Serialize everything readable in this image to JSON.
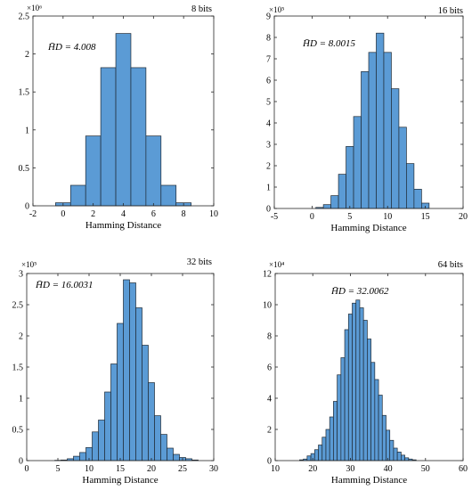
{
  "chart_data": [
    {
      "type": "bar",
      "title": "8 bits",
      "xlabel": "Hamming Distance",
      "ylabel": "",
      "mean_label": "H̄D = 4.008",
      "exponent_label": "×10⁶",
      "xlim": [
        -2,
        10
      ],
      "ylim": [
        0,
        2.5
      ],
      "bin_width": 1,
      "xticks": [
        -2,
        0,
        2,
        4,
        6,
        8,
        10
      ],
      "yticks": [
        0,
        0.5,
        1,
        1.5,
        2,
        2.5
      ],
      "ytick_labels": [
        "0",
        "0.5",
        "1",
        "1.5",
        "2",
        "2.5"
      ],
      "x": [
        0,
        1,
        2,
        3,
        4,
        5,
        6,
        7,
        8
      ],
      "values": [
        0.04,
        0.27,
        0.92,
        1.82,
        2.27,
        1.82,
        0.92,
        0.27,
        0.04
      ]
    },
    {
      "type": "bar",
      "title": "16 bits",
      "xlabel": "Hamming Distance",
      "ylabel": "",
      "mean_label": "H̄D = 8.0015",
      "exponent_label": "×10⁵",
      "xlim": [
        -5,
        20
      ],
      "ylim": [
        0,
        9
      ],
      "bin_width": 1,
      "xticks": [
        -5,
        0,
        5,
        10,
        15,
        20
      ],
      "yticks": [
        0,
        1,
        2,
        3,
        4,
        5,
        6,
        7,
        8,
        9
      ],
      "ytick_labels": [
        "0",
        "1",
        "2",
        "3",
        "4",
        "5",
        "6",
        "7",
        "8",
        "9"
      ],
      "x": [
        1,
        2,
        3,
        4,
        5,
        6,
        7,
        8,
        9,
        10,
        11,
        12,
        13,
        14,
        15
      ],
      "values": [
        0.05,
        0.18,
        0.6,
        1.6,
        2.9,
        4.3,
        6.4,
        7.3,
        8.2,
        7.3,
        5.6,
        3.8,
        2.1,
        0.9,
        0.25
      ]
    },
    {
      "type": "bar",
      "title": "32 bits",
      "xlabel": "Hamming Distance",
      "ylabel": "",
      "mean_label": "H̄D = 16.0031",
      "exponent_label": "×10⁵",
      "xlim": [
        0,
        30
      ],
      "ylim": [
        0,
        3
      ],
      "bin_width": 1,
      "xticks": [
        0,
        5,
        10,
        15,
        20,
        25,
        30
      ],
      "yticks": [
        0,
        0.5,
        1,
        1.5,
        2,
        2.5,
        3
      ],
      "ytick_labels": [
        "0",
        "0.5",
        "1",
        "1.5",
        "2",
        "2.5",
        "3"
      ],
      "x": [
        5,
        6,
        7,
        8,
        9,
        10,
        11,
        12,
        13,
        14,
        15,
        16,
        17,
        18,
        19,
        20,
        21,
        22,
        23,
        24,
        25,
        26,
        27
      ],
      "values": [
        0.005,
        0.01,
        0.03,
        0.07,
        0.13,
        0.21,
        0.46,
        0.65,
        1.1,
        1.55,
        2.2,
        2.9,
        2.85,
        2.45,
        1.85,
        1.25,
        0.72,
        0.42,
        0.2,
        0.1,
        0.05,
        0.03,
        0.01
      ]
    },
    {
      "type": "bar",
      "title": "64 bits",
      "xlabel": "Hamming Distance",
      "ylabel": "",
      "mean_label": "H̄D = 32.0062",
      "exponent_label": "×10⁴",
      "xlim": [
        10,
        60
      ],
      "ylim": [
        0,
        12
      ],
      "bin_width": 1,
      "xticks": [
        10,
        20,
        30,
        40,
        50,
        60
      ],
      "yticks": [
        0,
        2,
        4,
        6,
        8,
        10,
        12
      ],
      "ytick_labels": [
        "0",
        "2",
        "4",
        "6",
        "8",
        "10",
        "12"
      ],
      "x": [
        17,
        18,
        19,
        20,
        21,
        22,
        23,
        24,
        25,
        26,
        27,
        28,
        29,
        30,
        31,
        32,
        33,
        34,
        35,
        36,
        37,
        38,
        39,
        40,
        41,
        42,
        43,
        44,
        45,
        46,
        47
      ],
      "values": [
        0.05,
        0.1,
        0.3,
        0.45,
        0.7,
        1.0,
        1.5,
        2.0,
        2.8,
        3.8,
        5.5,
        6.6,
        8.4,
        9.4,
        10.1,
        10.3,
        9.8,
        9.0,
        7.8,
        6.3,
        5.2,
        4.2,
        2.9,
        1.95,
        1.3,
        0.8,
        0.55,
        0.35,
        0.18,
        0.1,
        0.05
      ]
    }
  ]
}
